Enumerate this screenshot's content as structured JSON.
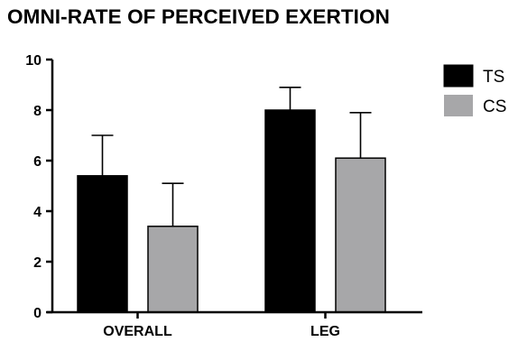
{
  "chart_data": {
    "type": "bar",
    "title": "OMNI-RATE OF PERCEIVED EXERTION",
    "xlabel": "",
    "ylabel": "",
    "categories": [
      "OVERALL",
      "LEG"
    ],
    "series": [
      {
        "name": "TS",
        "values": [
          5.4,
          8.0
        ],
        "error": [
          1.6,
          0.9
        ],
        "color": "#000000"
      },
      {
        "name": "CS",
        "values": [
          3.4,
          6.1
        ],
        "error": [
          1.7,
          1.8
        ],
        "color": "#a7a7a9"
      }
    ],
    "ylim": [
      0,
      10
    ],
    "yticks": [
      0,
      2,
      4,
      6,
      8,
      10
    ],
    "grid": false,
    "legend_position": "top-right"
  }
}
